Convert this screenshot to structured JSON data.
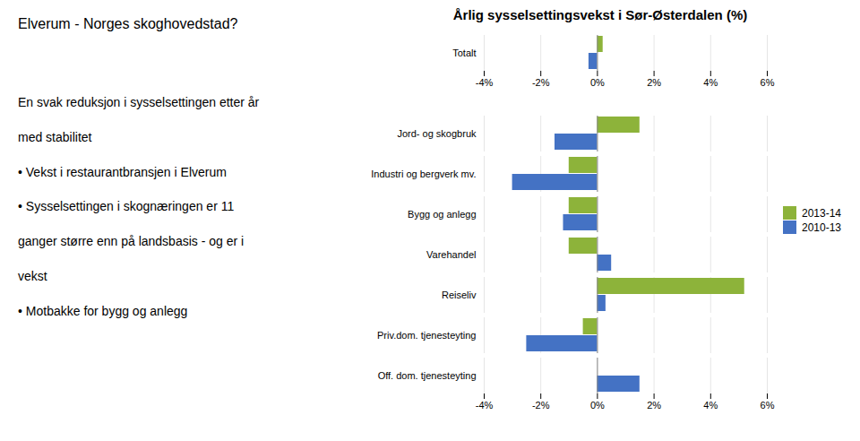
{
  "chart_data": {
    "type": "bar",
    "orientation": "horizontal",
    "title": "Årlig sysselsettingsvekst i Sør-Østerdalen (%)",
    "annotations": [
      "Elverum - Norges skoghovedstad?",
      "En svak reduksjon i sysselsettingen etter år",
      "med stabilitet",
      "• Vekst i restaurantbransjen i Elverum",
      "• Sysselsettingen i skognæringen er 11",
      "ganger større enn på landsbasis - og er i",
      "vekst",
      "• Motbakke for bygg og anlegg"
    ],
    "categories": [
      "Totalt",
      null,
      "Jord- og skogbruk",
      "Industri og bergverk mv.",
      "Bygg og anlegg",
      "Varehandel",
      "Reiseliv",
      "Priv.dom. tjenesteyting",
      "Off. dom. tjenesteyting"
    ],
    "series": [
      {
        "name": "2013-14",
        "color": "#8db33a",
        "values": [
          0.2,
          null,
          1.5,
          -1.0,
          -1.0,
          -1.0,
          5.2,
          -0.5,
          0.0
        ]
      },
      {
        "name": "2010-13",
        "color": "#4472c4",
        "values": [
          -0.3,
          null,
          -1.5,
          -3.0,
          -1.2,
          0.5,
          0.3,
          -2.5,
          1.5
        ]
      }
    ],
    "xlim": [
      -4,
      6
    ],
    "xticks": [
      {
        "value": -4,
        "label": "-4%"
      },
      {
        "value": -2,
        "label": "-2%"
      },
      {
        "value": 0,
        "label": "0%"
      },
      {
        "value": 2,
        "label": "2%"
      },
      {
        "value": 4,
        "label": "4%"
      },
      {
        "value": 6,
        "label": "6%"
      }
    ],
    "grid": true,
    "legend": "right"
  }
}
